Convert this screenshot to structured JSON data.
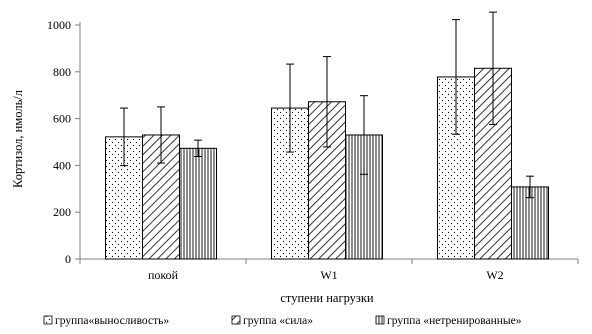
{
  "chart_data": {
    "type": "bar",
    "xlabel": "ступени нагрузки",
    "ylabel": "Кортизол, нмоль/л",
    "ylim": [
      0,
      1000
    ],
    "yticks": [
      0,
      200,
      400,
      600,
      800,
      1000
    ],
    "categories": [
      "покой",
      "W1",
      "W2"
    ],
    "grid": false,
    "legend_position": "bottom",
    "series": [
      {
        "name": "группа«выносливость»",
        "pattern": "dots",
        "values": [
          522,
          645,
          778
        ],
        "errors": [
          123,
          188,
          245
        ]
      },
      {
        "name": "группа «сила»",
        "pattern": "diagonal-hatch",
        "values": [
          530,
          672,
          815
        ],
        "errors": [
          120,
          193,
          240
        ]
      },
      {
        "name": "группа «нетренированные»",
        "pattern": "vertical-lines",
        "values": [
          473,
          530,
          308
        ],
        "errors": [
          35,
          168,
          46
        ]
      }
    ]
  },
  "colors": {
    "bar_fill": "#ffffff",
    "ink": "#000000",
    "axis": "#7f7f7f"
  }
}
